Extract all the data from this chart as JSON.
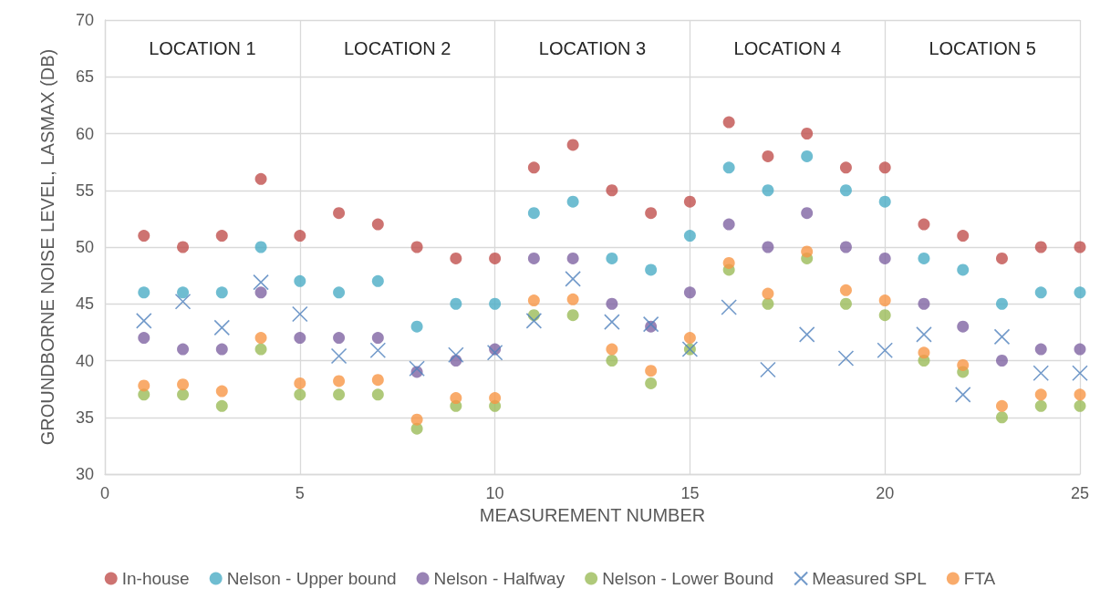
{
  "chart_data": {
    "type": "scatter",
    "xlabel": "MEASUREMENT NUMBER",
    "ylabel": "GROUNDBORNE NOISE LEVEL, LASMAX (DB)",
    "x": [
      1,
      2,
      3,
      4,
      5,
      6,
      7,
      8,
      9,
      10,
      11,
      12,
      13,
      14,
      15,
      16,
      17,
      18,
      19,
      20,
      21,
      22,
      23,
      24,
      25
    ],
    "series": [
      {
        "name": "In-house",
        "color": "#c0504d",
        "marker": "circle",
        "values": [
          51,
          50,
          51,
          56,
          51,
          53,
          52,
          50,
          49,
          49,
          57,
          59,
          55,
          53,
          54,
          61,
          58,
          60,
          57,
          57,
          52,
          51,
          49,
          50,
          50
        ]
      },
      {
        "name": "Nelson - Upper bound",
        "color": "#4bacc6",
        "marker": "circle",
        "values": [
          46,
          46,
          46,
          50,
          47,
          46,
          47,
          43,
          45,
          45,
          53,
          54,
          49,
          48,
          51,
          57,
          55,
          58,
          55,
          54,
          49,
          48,
          45,
          46,
          46
        ]
      },
      {
        "name": "Nelson - Halfway",
        "color": "#8064a2",
        "marker": "circle",
        "values": [
          42,
          41,
          41,
          46,
          42,
          42,
          42,
          39,
          40,
          41,
          49,
          49,
          45,
          43,
          46,
          52,
          50,
          53,
          50,
          49,
          45,
          43,
          40,
          41,
          41
        ]
      },
      {
        "name": "Nelson - Lower Bound",
        "color": "#9bbb59",
        "marker": "circle",
        "values": [
          37,
          37,
          36,
          41,
          37,
          37,
          37,
          34,
          36,
          36,
          44,
          44,
          40,
          38,
          41,
          48,
          45,
          49,
          45,
          44,
          40,
          39,
          35,
          36,
          36
        ]
      },
      {
        "name": "Measured SPL",
        "color": "#4f81bd",
        "marker": "cross",
        "values": [
          43.5,
          45.2,
          42.9,
          46.9,
          44.1,
          40.4,
          40.9,
          39.3,
          40.5,
          40.7,
          43.5,
          47.2,
          43.4,
          43.2,
          41.0,
          44.7,
          39.2,
          42.3,
          40.2,
          40.9,
          42.3,
          37.0,
          42.1,
          38.9,
          38.9
        ]
      },
      {
        "name": "FTA",
        "color": "#f79646",
        "marker": "circle",
        "values": [
          37.8,
          37.9,
          37.3,
          42.0,
          38.0,
          38.2,
          38.3,
          34.8,
          36.7,
          36.7,
          45.3,
          45.4,
          41.0,
          39.1,
          42.0,
          48.6,
          45.9,
          49.6,
          46.2,
          45.3,
          40.7,
          39.6,
          36.0,
          37.0,
          37.0
        ]
      }
    ],
    "annotations": [
      "LOCATION 1",
      "LOCATION 2",
      "LOCATION 3",
      "LOCATION 4",
      "LOCATION 5"
    ],
    "xlim": [
      0,
      25
    ],
    "xticks": [
      0,
      5,
      10,
      15,
      20,
      25
    ],
    "ylim": [
      30,
      70
    ],
    "yticks": [
      30,
      35,
      40,
      45,
      50,
      55,
      60,
      65,
      70
    ],
    "grid": true,
    "legend": "bottom"
  }
}
